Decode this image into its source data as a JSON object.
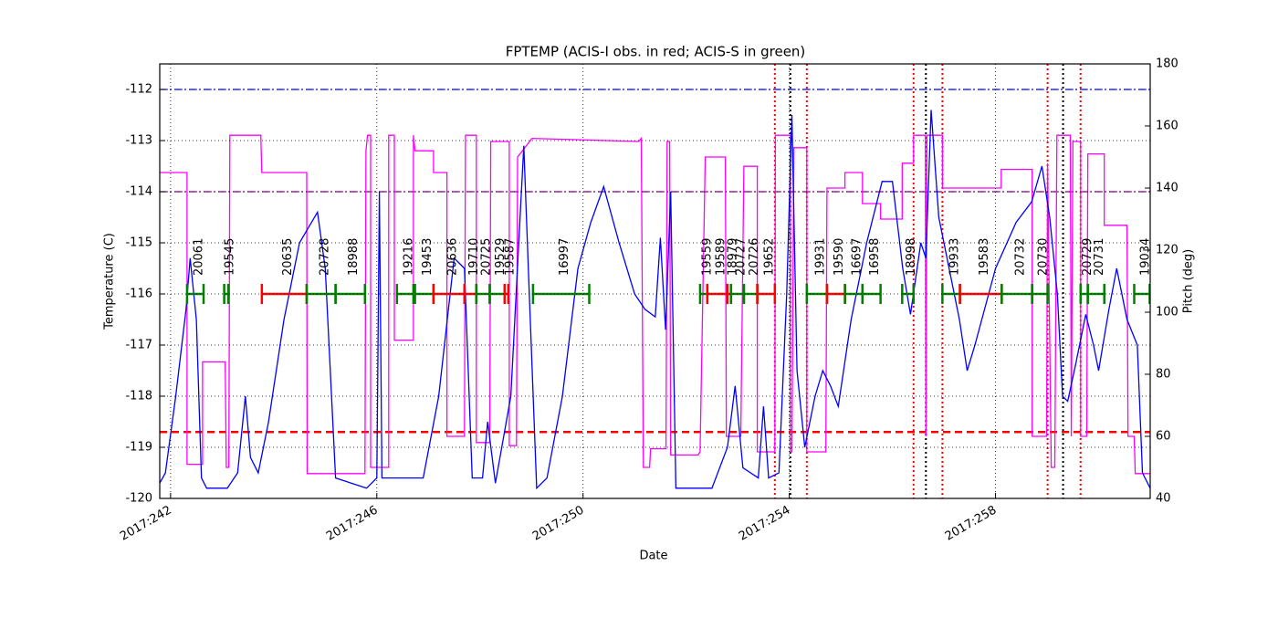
{
  "chart_data": {
    "type": "line",
    "title": "FPTEMP (ACIS-I obs. in red; ACIS-S in green)",
    "xlabel": "Date",
    "ylabel": "Temperature (C)",
    "y2label": "Pitch (deg)",
    "y2color": "#ff00ff",
    "grid": true,
    "xlim": [
      241.79,
      261.0
    ],
    "ylim": [
      -120,
      -111.5
    ],
    "y2lim": [
      40,
      180
    ],
    "xticks": [
      {
        "value": 242,
        "label": "2017:242"
      },
      {
        "value": 246,
        "label": "2017:246"
      },
      {
        "value": 250,
        "label": "2017:250"
      },
      {
        "value": 254,
        "label": "2017:254"
      },
      {
        "value": 258,
        "label": "2017:258"
      }
    ],
    "yticks": [
      -120,
      -119,
      -118,
      -117,
      -116,
      -115,
      -114,
      -113,
      -112
    ],
    "y2ticks": [
      40,
      60,
      80,
      100,
      120,
      140,
      160,
      180
    ],
    "series": [
      {
        "color": "#0000ff",
        "x": [
          241.79,
          241.9,
          242.1,
          242.3,
          242.38,
          242.5,
          242.6,
          242.7,
          243.1,
          243.3,
          243.45,
          243.55,
          243.7,
          243.9,
          244.2,
          244.5,
          244.85,
          245.0,
          245.2,
          245.8,
          246.0,
          246.05,
          246.1,
          246.9,
          247.2,
          247.5,
          247.7,
          247.85,
          248.05,
          248.15,
          248.3,
          248.6,
          248.85,
          248.95,
          249.1,
          249.3,
          249.6,
          249.9,
          250.15,
          250.4,
          250.7,
          251.0,
          251.2,
          251.4,
          251.5,
          251.6,
          251.7,
          251.8,
          252.5,
          252.8,
          252.95,
          253.1,
          253.4,
          253.5,
          253.6,
          253.8,
          253.95,
          254.05,
          254.15,
          254.3,
          254.5,
          254.65,
          254.8,
          254.95,
          255.2,
          255.5,
          255.8,
          256.0,
          256.2,
          256.35,
          256.55,
          256.65,
          256.75,
          256.9,
          257.1,
          257.3,
          257.45,
          257.6,
          258.0,
          258.4,
          258.7,
          258.9,
          259.05,
          259.2,
          259.3,
          259.4,
          259.55,
          259.75,
          259.9,
          260.0,
          260.2,
          260.35,
          260.55,
          260.75,
          260.85,
          261.0
        ],
        "values": [
          -119.7,
          -119.5,
          -118.0,
          -116.3,
          -115.3,
          -116.5,
          -119.6,
          -119.8,
          -119.8,
          -119.5,
          -118.0,
          -119.2,
          -119.5,
          -118.5,
          -116.5,
          -115.0,
          -114.4,
          -115.5,
          -119.6,
          -119.8,
          -119.6,
          -114.0,
          -119.6,
          -119.6,
          -118.0,
          -115.3,
          -115.5,
          -119.6,
          -119.6,
          -118.5,
          -119.7,
          -118.0,
          -113.1,
          -115.8,
          -119.8,
          -119.6,
          -118.0,
          -115.5,
          -114.6,
          -113.9,
          -115.0,
          -116.0,
          -116.3,
          -116.45,
          -114.9,
          -116.7,
          -114.0,
          -119.8,
          -119.8,
          -119.0,
          -117.8,
          -119.4,
          -119.6,
          -118.2,
          -119.6,
          -119.5,
          -116.0,
          -112.5,
          -117.5,
          -119.0,
          -118.0,
          -117.5,
          -117.8,
          -118.2,
          -116.5,
          -115.0,
          -113.8,
          -113.8,
          -115.5,
          -116.4,
          -115.0,
          -115.3,
          -112.4,
          -114.5,
          -115.5,
          -116.5,
          -117.5,
          -117.0,
          -115.5,
          -114.6,
          -114.2,
          -113.5,
          -114.5,
          -116.0,
          -118.0,
          -118.1,
          -117.4,
          -116.4,
          -117.0,
          -117.5,
          -116.3,
          -115.5,
          -116.5,
          -117.0,
          -119.5,
          -119.8
        ]
      },
      {
        "color": "#ff00ff",
        "axis": "y2",
        "x": [
          241.79,
          242.32,
          242.32,
          242.62,
          242.62,
          243.06,
          243.08,
          243.13,
          243.15,
          243.75,
          243.77,
          244.64,
          244.65,
          245.77,
          245.79,
          245.82,
          245.88,
          245.88,
          246.23,
          246.23,
          246.34,
          246.34,
          246.71,
          246.71,
          246.74,
          247.1,
          247.1,
          247.36,
          247.36,
          247.7,
          247.72,
          247.93,
          247.93,
          248.19,
          248.21,
          248.57,
          248.57,
          248.71,
          248.73,
          249.01,
          251.08,
          251.13,
          251.17,
          251.29,
          251.31,
          251.61,
          251.63,
          251.68,
          251.7,
          252.23,
          252.27,
          252.37,
          252.76,
          252.78,
          253.06,
          253.12,
          253.38,
          253.38,
          253.72,
          253.73,
          254.02,
          254.02,
          254.05,
          254.09,
          254.34,
          254.34,
          254.71,
          254.73,
          255.08,
          255.08,
          255.42,
          255.42,
          255.77,
          255.77,
          256.19,
          256.19,
          256.41,
          256.41,
          256.64,
          256.65,
          256.67,
          256.97,
          256.97,
          258.11,
          258.11,
          258.71,
          258.71,
          258.99,
          259.01,
          259.08,
          259.15,
          259.19,
          259.45,
          259.47,
          259.5,
          259.65,
          259.65,
          259.77,
          259.79,
          260.11,
          260.11,
          260.55,
          260.57,
          260.69,
          260.71,
          260.99
        ],
        "values": [
          145,
          145,
          51,
          51,
          84,
          84,
          50,
          50,
          157,
          157,
          145,
          145,
          48,
          48,
          152,
          157,
          157,
          50,
          50,
          157,
          157,
          91,
          91,
          157,
          152,
          152,
          145,
          145,
          60,
          60,
          157,
          157,
          58,
          58,
          155,
          155,
          57,
          57,
          150,
          156,
          155,
          156,
          50,
          50,
          56,
          56,
          155,
          155,
          54,
          54,
          55,
          150,
          150,
          60,
          60,
          147,
          147,
          55,
          55,
          157,
          157,
          55,
          55,
          153,
          153,
          55,
          55,
          140,
          140,
          145,
          145,
          135,
          135,
          130,
          130,
          148,
          148,
          157,
          157,
          60,
          157,
          157,
          140,
          140,
          146,
          146,
          60,
          60,
          148,
          50,
          50,
          157,
          157,
          60,
          155,
          155,
          60,
          60,
          151,
          151,
          128,
          128,
          60,
          60,
          48,
          48
        ]
      }
    ],
    "hlines": [
      {
        "value": -112,
        "color": "#0000ff",
        "dash": "dashdot"
      },
      {
        "value": -114,
        "color": "#800080",
        "dash": "dashdot"
      },
      {
        "value": -118.7,
        "color": "#ff0000",
        "dash": "dashed"
      }
    ],
    "vlines": [
      {
        "x": 253.72,
        "color": "#ff0000"
      },
      {
        "x": 254.02,
        "color": "#000000"
      },
      {
        "x": 254.34,
        "color": "#ff0000"
      },
      {
        "x": 256.41,
        "color": "#ff0000"
      },
      {
        "x": 256.65,
        "color": "#000000"
      },
      {
        "x": 256.97,
        "color": "#ff0000"
      },
      {
        "x": 259.01,
        "color": "#ff0000"
      },
      {
        "x": 259.31,
        "color": "#000000"
      },
      {
        "x": 259.65,
        "color": "#ff0000"
      }
    ],
    "observations": {
      "level": -116,
      "labels": [
        "20061",
        "19545",
        "20635",
        "20728",
        "18988",
        "19216",
        "19453",
        "20636",
        "19710",
        "20725",
        "19529",
        "19587",
        "16997",
        "19559",
        "19589",
        "18979",
        "20727",
        "20726",
        "19652",
        "19931",
        "19590",
        "16697",
        "16958",
        "18998",
        "19933",
        "19583",
        "20732",
        "20730",
        "20729",
        "20731",
        "19034"
      ],
      "start": [
        242.32,
        243.04,
        243.77,
        244.64,
        245.2,
        246.39,
        246.74,
        247.1,
        247.7,
        247.93,
        248.19,
        248.48,
        249.03,
        252.27,
        252.41,
        252.8,
        252.87,
        253.12,
        253.38,
        254.34,
        254.73,
        255.08,
        255.42,
        256.19,
        256.97,
        257.31,
        258.12,
        258.71,
        259.65,
        259.79,
        260.69
      ],
      "stop": [
        242.64,
        243.12,
        244.64,
        245.2,
        245.77,
        246.71,
        247.1,
        247.7,
        247.93,
        248.19,
        248.48,
        248.55,
        250.12,
        252.41,
        252.8,
        252.87,
        253.12,
        253.38,
        253.72,
        254.73,
        255.08,
        255.42,
        255.77,
        256.41,
        257.31,
        258.12,
        258.71,
        259.01,
        259.79,
        260.11,
        260.99
      ],
      "colors": [
        "#008000",
        "#008000",
        "#ff0000",
        "#008000",
        "#008000",
        "#008000",
        "#008000",
        "#ff0000",
        "#ff0000",
        "#008000",
        "#008000",
        "#ff0000",
        "#008000",
        "#008000",
        "#ff0000",
        "#ff0000",
        "#008000",
        "#008000",
        "#ff0000",
        "#008000",
        "#ff0000",
        "#008000",
        "#008000",
        "#008000",
        "#008000",
        "#ff0000",
        "#008000",
        "#008000",
        "#008000",
        "#008000",
        "#008000"
      ]
    }
  }
}
